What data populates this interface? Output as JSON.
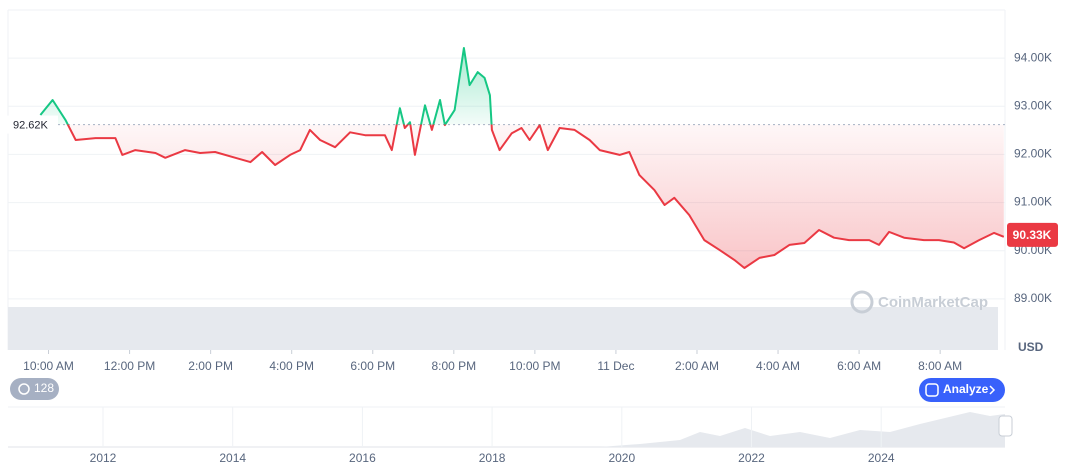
{
  "chart_data": {
    "type": "line",
    "x": [
      9.8,
      10.1,
      10.42,
      10.67,
      11.16,
      11.65,
      11.82,
      12.14,
      12.64,
      12.88,
      13.37,
      13.74,
      14.11,
      14.61,
      14.98,
      15.27,
      15.59,
      15.96,
      16.21,
      16.45,
      16.7,
      17.07,
      17.44,
      17.81,
      18.3,
      18.47,
      18.67,
      18.79,
      18.92,
      19.04,
      19.29,
      19.46,
      19.66,
      19.78,
      20.02,
      20.25,
      20.39,
      20.59,
      20.76,
      20.89,
      20.94,
      21.13,
      21.43,
      21.67,
      21.87,
      22.12,
      22.32,
      22.61,
      22.98,
      23.35,
      23.6,
      24.09,
      24.33,
      24.58,
      24.95,
      25.2,
      25.44,
      25.81,
      26.18,
      26.55,
      26.92,
      27.17,
      27.54,
      27.91,
      28.28,
      28.65,
      29.01,
      29.38,
      29.75,
      30.25,
      30.49,
      30.74,
      31.11,
      31.6,
      31.97,
      32.34,
      32.59,
      32.96,
      33.33,
      33.57
    ],
    "values": [
      92.82,
      93.13,
      92.71,
      92.3,
      92.34,
      92.34,
      91.99,
      92.09,
      92.03,
      91.93,
      92.09,
      92.03,
      92.05,
      91.93,
      91.84,
      92.05,
      91.78,
      91.99,
      92.09,
      92.51,
      92.3,
      92.15,
      92.46,
      92.4,
      92.4,
      92.09,
      92.96,
      92.55,
      92.67,
      91.99,
      93.02,
      92.51,
      93.13,
      92.61,
      92.92,
      94.21,
      93.44,
      93.71,
      93.59,
      93.23,
      92.51,
      92.09,
      92.44,
      92.55,
      92.3,
      92.61,
      92.09,
      92.55,
      92.51,
      92.3,
      92.09,
      91.99,
      92.05,
      91.57,
      91.26,
      90.95,
      91.1,
      90.74,
      90.22,
      90.02,
      89.81,
      89.64,
      89.85,
      89.91,
      90.12,
      90.16,
      90.43,
      90.27,
      90.22,
      90.22,
      90.12,
      90.39,
      90.27,
      90.22,
      90.22,
      90.17,
      90.05,
      90.22,
      90.37,
      90.29
    ],
    "up_color": "#16c784",
    "down_color": "#ea3943",
    "xlim": [
      9,
      33.6
    ],
    "xticks": [
      {
        "value": 10,
        "label": "10:00 AM"
      },
      {
        "value": 12,
        "label": "12:00 PM"
      },
      {
        "value": 14,
        "label": "2:00 PM"
      },
      {
        "value": 16,
        "label": "4:00 PM"
      },
      {
        "value": 18,
        "label": "6:00 PM"
      },
      {
        "value": 20,
        "label": "8:00 PM"
      },
      {
        "value": 22,
        "label": "10:00 PM"
      },
      {
        "value": 24,
        "label": "11 Dec"
      },
      {
        "value": 26,
        "label": "2:00 AM"
      },
      {
        "value": 28,
        "label": "4:00 AM"
      },
      {
        "value": 30,
        "label": "6:00 AM"
      },
      {
        "value": 32,
        "label": "8:00 AM"
      }
    ],
    "ylim": [
      88,
      95
    ],
    "yticks": [
      {
        "value": 89,
        "label": "89.00K"
      },
      {
        "value": 90,
        "label": "90.00K"
      },
      {
        "value": 91,
        "label": "91.00K"
      },
      {
        "value": 92,
        "label": "92.00K"
      },
      {
        "value": 93,
        "label": "93.00K"
      },
      {
        "value": 94,
        "label": "94.00K"
      }
    ],
    "baseline": {
      "value": 92.62,
      "label": "92.62K"
    },
    "current": {
      "value": 90.33,
      "label": "90.33K"
    },
    "currency": "USD",
    "grid": true
  },
  "ui": {
    "watermark": "CoinMarketCap",
    "badge": "128",
    "analyze": "Analyze",
    "navigator_years": [
      "2012",
      "2014",
      "2016",
      "2018",
      "2020",
      "2022",
      "2024"
    ]
  }
}
